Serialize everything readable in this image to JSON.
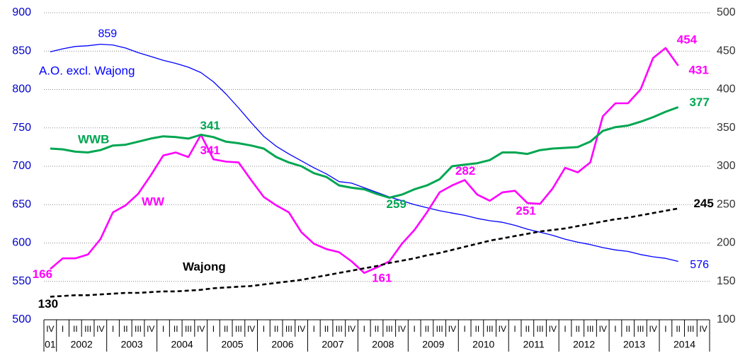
{
  "chart_data": {
    "type": "line",
    "categories": [
      "IV",
      "I",
      "II",
      "III",
      "IV",
      "I",
      "II",
      "III",
      "IV",
      "I",
      "II",
      "III",
      "IV",
      "I",
      "II",
      "III",
      "IV",
      "I",
      "II",
      "III",
      "IV",
      "I",
      "II",
      "III",
      "IV",
      "I",
      "II",
      "III",
      "IV",
      "I",
      "II",
      "III",
      "IV",
      "I",
      "II",
      "III",
      "IV",
      "I",
      "II",
      "III",
      "IV",
      "I",
      "II",
      "III",
      "IV",
      "I",
      "II",
      "III",
      "IV",
      "I",
      "II",
      "III",
      "IV"
    ],
    "category_groups": [
      "01",
      "2002",
      null,
      null,
      null,
      "2003",
      null,
      null,
      null,
      "2004",
      null,
      null,
      null,
      "2005",
      null,
      null,
      null,
      "2006",
      null,
      null,
      null,
      "2007",
      null,
      null,
      null,
      "2008",
      null,
      null,
      null,
      "2009",
      null,
      null,
      null,
      "2010",
      null,
      null,
      null,
      "2011",
      null,
      null,
      null,
      "2012",
      null,
      null,
      null,
      "2013",
      null,
      null,
      null,
      "2014",
      null,
      null,
      null
    ],
    "ylim": [
      500,
      900
    ],
    "yticks": [
      500,
      550,
      600,
      650,
      700,
      750,
      800,
      850,
      900
    ],
    "y2lim": [
      100,
      500
    ],
    "y2ticks": [
      100,
      150,
      200,
      250,
      300,
      350,
      400,
      450,
      500
    ],
    "grid": true,
    "series": [
      {
        "name": "A.O. excl. Wajong",
        "color": "#0000ff",
        "axis": "y",
        "values": [
          849,
          853,
          856,
          857,
          859,
          858,
          854,
          848,
          843,
          838,
          834,
          829,
          822,
          810,
          794,
          776,
          757,
          739,
          726,
          716,
          707,
          698,
          690,
          680,
          678,
          672,
          666,
          660,
          655,
          650,
          646,
          642,
          639,
          636,
          632,
          629,
          627,
          623,
          618,
          614,
          610,
          605,
          601,
          598,
          594,
          591,
          589,
          585,
          582,
          580,
          576,
          null,
          null
        ],
        "labeled_points": [
          4,
          50
        ]
      },
      {
        "name": "WW",
        "color": "#ff00ff",
        "axis": "y2",
        "values": [
          166,
          180,
          180,
          185,
          205,
          240,
          249,
          264,
          288,
          314,
          318,
          312,
          341,
          309,
          306,
          305,
          282,
          260,
          249,
          240,
          214,
          199,
          192,
          188,
          176,
          161,
          168,
          176,
          199,
          217,
          240,
          266,
          275,
          282,
          263,
          255,
          266,
          268,
          252,
          251,
          271,
          298,
          292,
          305,
          365,
          382,
          382,
          400,
          441,
          454,
          431,
          null,
          null
        ],
        "labeled_points": [
          0,
          12,
          25,
          33,
          39,
          49,
          50
        ]
      },
      {
        "name": "WWB",
        "color": "#00a651",
        "axis": "y2",
        "values": [
          323,
          322,
          319,
          318,
          321,
          327,
          328,
          332,
          336,
          339,
          338,
          336,
          341,
          338,
          332,
          330,
          327,
          323,
          312,
          305,
          300,
          291,
          286,
          275,
          272,
          270,
          264,
          259,
          263,
          270,
          275,
          283,
          300,
          302,
          304,
          308,
          318,
          318,
          316,
          321,
          323,
          324,
          325,
          332,
          346,
          351,
          353,
          358,
          364,
          371,
          377,
          null,
          null
        ],
        "labeled_points": [
          12,
          27,
          50
        ]
      },
      {
        "name": "Wajong",
        "color": "#000000",
        "axis": "y2",
        "dashed": true,
        "values": [
          130,
          131,
          132,
          132,
          133,
          134,
          135,
          135,
          136,
          137,
          137,
          138,
          139,
          141,
          142,
          143,
          144,
          146,
          148,
          150,
          152,
          155,
          158,
          161,
          164,
          167,
          170,
          174,
          177,
          180,
          184,
          187,
          191,
          195,
          199,
          203,
          206,
          209,
          212,
          215,
          217,
          219,
          222,
          225,
          228,
          231,
          233,
          236,
          239,
          242,
          245,
          null,
          null
        ],
        "labeled_points": [
          0,
          50
        ]
      }
    ]
  }
}
